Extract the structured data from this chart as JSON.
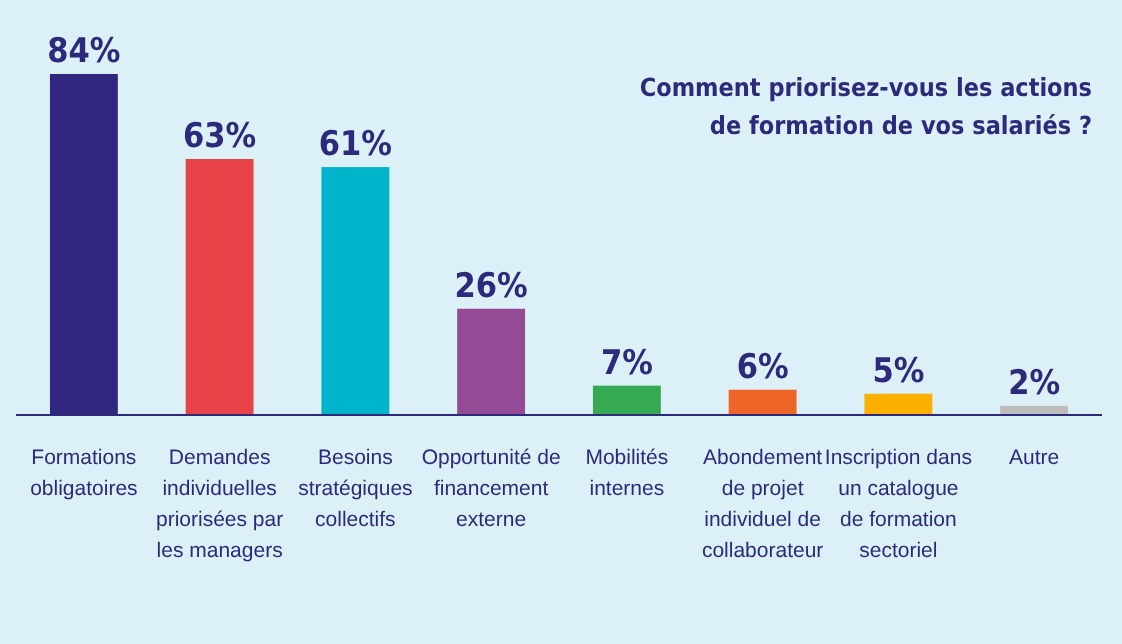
{
  "chart_data": {
    "type": "bar",
    "title": "Comment priorisez-vous les actions de formation de vos salariés ?",
    "categories": [
      "Formations obligatoires",
      "Demandes individuelles priorisées par les managers",
      "Besoins stratégiques collectifs",
      "Opportunité de financement externe",
      "Mobilités internes",
      "Abondement de projet individuel de collaborateur",
      "Inscription dans un catalogue de formation sectoriel",
      "Autre"
    ],
    "values": [
      84,
      63,
      61,
      26,
      7,
      6,
      5,
      2
    ],
    "colors": [
      "#31267f",
      "#e84249",
      "#00b4cc",
      "#954a96",
      "#35aa52",
      "#ed6527",
      "#fbb000",
      "#bdbdbd"
    ],
    "value_labels": [
      "84%",
      "63%",
      "61%",
      "26%",
      "7%",
      "6%",
      "5%",
      "2%"
    ]
  }
}
